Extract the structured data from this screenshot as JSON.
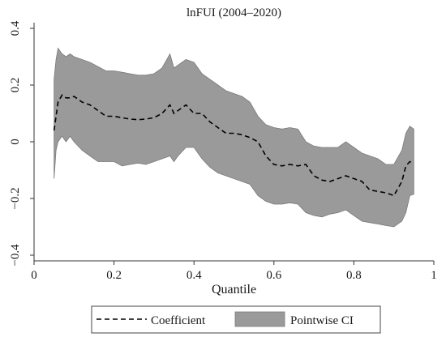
{
  "chart_data": {
    "type": "area",
    "title": "lnFUI (2004–2020)",
    "xlabel": "Quantile",
    "ylabel": "",
    "xlim": [
      0,
      1
    ],
    "ylim": [
      -0.42,
      0.42
    ],
    "xticks": [
      0,
      0.2,
      0.4,
      0.6,
      0.8,
      1
    ],
    "xtick_labels": [
      "0",
      "0.2",
      "0.4",
      "0.6",
      "0.8",
      "1"
    ],
    "yticks": [
      -0.4,
      -0.2,
      0,
      0.2,
      0.4
    ],
    "ytick_labels": [
      "−0.4",
      "−0.2",
      "0",
      "0.2",
      "0.4"
    ],
    "grid": false,
    "legend": {
      "position": "bottom",
      "entries": [
        "Coefficient",
        "Pointwise CI"
      ]
    },
    "colors": {
      "ci_fill": "#9a9a9a",
      "line": "#000000",
      "axis": "#333333"
    },
    "series": [
      {
        "name": "Coefficient",
        "style": "dashed",
        "x": [
          0.05,
          0.06,
          0.07,
          0.08,
          0.09,
          0.1,
          0.12,
          0.14,
          0.16,
          0.18,
          0.2,
          0.22,
          0.24,
          0.26,
          0.28,
          0.3,
          0.32,
          0.34,
          0.35,
          0.36,
          0.38,
          0.4,
          0.42,
          0.44,
          0.46,
          0.48,
          0.5,
          0.52,
          0.54,
          0.56,
          0.58,
          0.6,
          0.62,
          0.64,
          0.66,
          0.68,
          0.7,
          0.72,
          0.74,
          0.76,
          0.78,
          0.8,
          0.82,
          0.84,
          0.86,
          0.88,
          0.9,
          0.92,
          0.93,
          0.94,
          0.95
        ],
        "values": [
          0.04,
          0.14,
          0.165,
          0.155,
          0.155,
          0.16,
          0.14,
          0.13,
          0.11,
          0.09,
          0.09,
          0.085,
          0.08,
          0.078,
          0.08,
          0.085,
          0.1,
          0.13,
          0.1,
          0.11,
          0.13,
          0.1,
          0.1,
          0.07,
          0.05,
          0.03,
          0.03,
          0.025,
          0.015,
          0.0,
          -0.05,
          -0.08,
          -0.085,
          -0.08,
          -0.085,
          -0.08,
          -0.12,
          -0.135,
          -0.14,
          -0.13,
          -0.12,
          -0.13,
          -0.14,
          -0.17,
          -0.175,
          -0.18,
          -0.19,
          -0.14,
          -0.085,
          -0.07,
          -0.075
        ]
      },
      {
        "name": "Pointwise CI",
        "type": "band",
        "x": [
          0.05,
          0.055,
          0.06,
          0.07,
          0.08,
          0.09,
          0.1,
          0.12,
          0.14,
          0.16,
          0.18,
          0.2,
          0.22,
          0.24,
          0.26,
          0.28,
          0.3,
          0.32,
          0.34,
          0.35,
          0.36,
          0.38,
          0.4,
          0.42,
          0.44,
          0.46,
          0.48,
          0.5,
          0.52,
          0.54,
          0.56,
          0.58,
          0.6,
          0.62,
          0.64,
          0.66,
          0.68,
          0.7,
          0.72,
          0.74,
          0.76,
          0.78,
          0.8,
          0.82,
          0.84,
          0.86,
          0.88,
          0.9,
          0.92,
          0.93,
          0.94,
          0.95
        ],
        "upper": [
          0.22,
          0.29,
          0.33,
          0.31,
          0.3,
          0.31,
          0.3,
          0.29,
          0.28,
          0.265,
          0.25,
          0.25,
          0.245,
          0.24,
          0.235,
          0.235,
          0.24,
          0.26,
          0.31,
          0.26,
          0.27,
          0.29,
          0.28,
          0.24,
          0.22,
          0.2,
          0.18,
          0.17,
          0.16,
          0.14,
          0.09,
          0.06,
          0.05,
          0.045,
          0.05,
          0.045,
          0.0,
          -0.015,
          -0.02,
          -0.02,
          -0.02,
          0.0,
          -0.02,
          -0.04,
          -0.05,
          -0.06,
          -0.08,
          -0.08,
          -0.03,
          0.03,
          0.055,
          0.045
        ],
        "lower": [
          -0.13,
          -0.03,
          0.0,
          0.02,
          0.0,
          0.02,
          0.0,
          -0.03,
          -0.05,
          -0.07,
          -0.07,
          -0.07,
          -0.085,
          -0.08,
          -0.075,
          -0.08,
          -0.07,
          -0.06,
          -0.05,
          -0.07,
          -0.05,
          -0.02,
          -0.02,
          -0.06,
          -0.09,
          -0.11,
          -0.12,
          -0.13,
          -0.14,
          -0.15,
          -0.19,
          -0.21,
          -0.22,
          -0.22,
          -0.215,
          -0.22,
          -0.25,
          -0.26,
          -0.265,
          -0.255,
          -0.25,
          -0.24,
          -0.26,
          -0.28,
          -0.285,
          -0.29,
          -0.295,
          -0.3,
          -0.28,
          -0.25,
          -0.19,
          -0.185
        ]
      }
    ]
  }
}
